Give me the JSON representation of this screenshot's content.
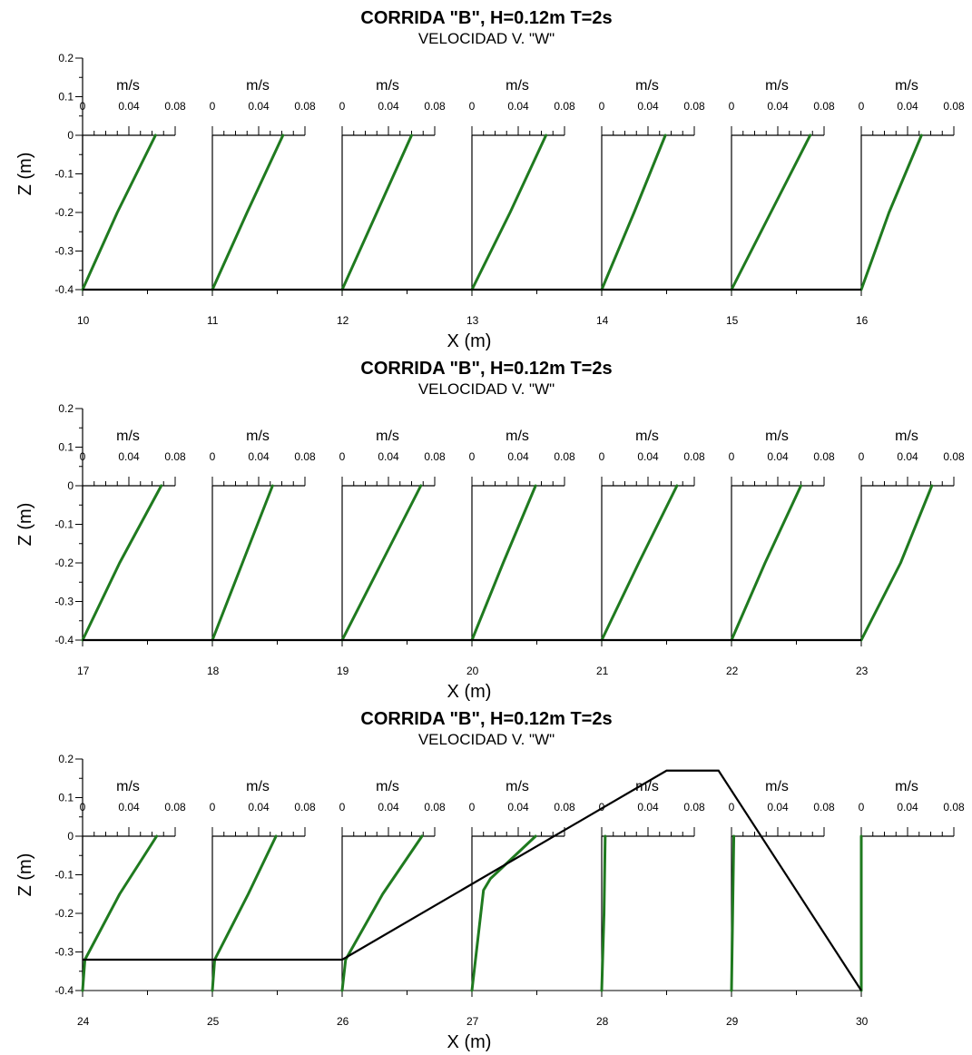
{
  "colors": {
    "profile": "#1f7a1f",
    "bed": "#000000",
    "axis": "#000000"
  },
  "chart_data": [
    {
      "type": "line",
      "title": "CORRIDA \"B\", H=0.12m T=2s",
      "subtitle": "VELOCIDAD V. \"W\"",
      "xlabel": "X (m)",
      "ylabel": "Z (m)",
      "xlim": [
        10,
        17.2
      ],
      "ylim": [
        -0.4,
        0.2
      ],
      "x_ticks": [
        "10",
        "11",
        "12",
        "13",
        "14",
        "15",
        "16"
      ],
      "y_ticks": [
        "0.2",
        "0.1",
        "0",
        "-0.1",
        "-0.2",
        "-0.3",
        "-0.4"
      ],
      "velocity_unit": "m/s",
      "velocity_ticks": [
        "0",
        "0.04",
        "0.08"
      ],
      "velocity_axis_range": [
        0,
        0.08
      ],
      "bed": [
        [
          10,
          -0.4
        ],
        [
          16,
          -0.4
        ]
      ],
      "profiles": [
        {
          "station": 10,
          "points": [
            [
              0,
              -0.4
            ],
            [
              0.03,
              -0.2
            ],
            [
              0.063,
              0
            ]
          ]
        },
        {
          "station": 11,
          "points": [
            [
              0,
              -0.4
            ],
            [
              0.03,
              -0.2
            ],
            [
              0.061,
              0
            ]
          ]
        },
        {
          "station": 12,
          "points": [
            [
              0,
              -0.4
            ],
            [
              0.03,
              -0.2
            ],
            [
              0.06,
              0
            ]
          ]
        },
        {
          "station": 13,
          "points": [
            [
              0,
              -0.4
            ],
            [
              0.033,
              -0.2
            ],
            [
              0.064,
              0
            ]
          ]
        },
        {
          "station": 14,
          "points": [
            [
              0,
              -0.4
            ],
            [
              0.028,
              -0.2
            ],
            [
              0.055,
              0
            ]
          ]
        },
        {
          "station": 15,
          "points": [
            [
              0,
              -0.4
            ],
            [
              0.034,
              -0.2
            ],
            [
              0.068,
              0
            ]
          ]
        },
        {
          "station": 16,
          "points": [
            [
              0,
              -0.4
            ],
            [
              0.024,
              -0.2
            ],
            [
              0.052,
              0
            ]
          ]
        }
      ]
    },
    {
      "type": "line",
      "title": "CORRIDA \"B\", H=0.12m T=2s",
      "subtitle": "VELOCIDAD V. \"W\"",
      "xlabel": "X (m)",
      "ylabel": "Z (m)",
      "xlim": [
        17,
        24.2
      ],
      "ylim": [
        -0.4,
        0.2
      ],
      "x_ticks": [
        "17",
        "18",
        "19",
        "20",
        "21",
        "22",
        "23"
      ],
      "y_ticks": [
        "0.2",
        "0.1",
        "0",
        "-0.1",
        "-0.2",
        "-0.3",
        "-0.4"
      ],
      "velocity_unit": "m/s",
      "velocity_ticks": [
        "0",
        "0.04",
        "0.08"
      ],
      "velocity_axis_range": [
        0,
        0.08
      ],
      "bed": [
        [
          17,
          -0.4
        ],
        [
          23,
          -0.4
        ]
      ],
      "profiles": [
        {
          "station": 17,
          "points": [
            [
              0,
              -0.4
            ],
            [
              0.032,
              -0.2
            ],
            [
              0.068,
              0
            ]
          ]
        },
        {
          "station": 18,
          "points": [
            [
              0,
              -0.4
            ],
            [
              0.026,
              -0.2
            ],
            [
              0.052,
              0
            ]
          ]
        },
        {
          "station": 19,
          "points": [
            [
              0,
              -0.4
            ],
            [
              0.034,
              -0.2
            ],
            [
              0.068,
              0
            ]
          ]
        },
        {
          "station": 20,
          "points": [
            [
              0,
              -0.4
            ],
            [
              0.027,
              -0.2
            ],
            [
              0.055,
              0
            ]
          ]
        },
        {
          "station": 21,
          "points": [
            [
              0,
              -0.4
            ],
            [
              0.032,
              -0.2
            ],
            [
              0.065,
              0
            ]
          ]
        },
        {
          "station": 22,
          "points": [
            [
              0,
              -0.4
            ],
            [
              0.029,
              -0.2
            ],
            [
              0.06,
              0
            ]
          ]
        },
        {
          "station": 23,
          "points": [
            [
              0,
              -0.4
            ],
            [
              0.034,
              -0.2
            ],
            [
              0.061,
              0
            ]
          ]
        }
      ]
    },
    {
      "type": "line",
      "title": "CORRIDA \"B\", H=0.12m T=2s",
      "subtitle": "VELOCIDAD V. \"W\"",
      "xlabel": "X (m)",
      "ylabel": "Z (m)",
      "xlim": [
        24,
        31.2
      ],
      "ylim": [
        -0.4,
        0.2
      ],
      "x_ticks": [
        "24",
        "25",
        "26",
        "27",
        "28",
        "29",
        "30"
      ],
      "y_ticks": [
        "0.2",
        "0.1",
        "0",
        "-0.1",
        "-0.2",
        "-0.3",
        "-0.4"
      ],
      "velocity_unit": "m/s",
      "velocity_ticks": [
        "0",
        "0.04",
        "0.08"
      ],
      "velocity_axis_range": [
        0,
        0.08
      ],
      "bed": [
        [
          24,
          -0.32
        ],
        [
          26,
          -0.32
        ],
        [
          28.5,
          0.17
        ],
        [
          28.9,
          0.17
        ],
        [
          30,
          -0.4
        ]
      ],
      "profiles": [
        {
          "station": 24,
          "points": [
            [
              0,
              -0.4
            ],
            [
              0.002,
              -0.32
            ],
            [
              0.032,
              -0.15
            ],
            [
              0.064,
              0
            ]
          ]
        },
        {
          "station": 25,
          "points": [
            [
              0,
              -0.4
            ],
            [
              0.002,
              -0.32
            ],
            [
              0.031,
              -0.15
            ],
            [
              0.055,
              0
            ]
          ]
        },
        {
          "station": 26,
          "points": [
            [
              0,
              -0.4
            ],
            [
              0.003,
              -0.32
            ],
            [
              0.035,
              -0.15
            ],
            [
              0.069,
              0
            ]
          ]
        },
        {
          "station": 27,
          "points": [
            [
              0,
              -0.4
            ],
            [
              0.01,
              -0.14
            ],
            [
              0.016,
              -0.11
            ],
            [
              0.055,
              0
            ]
          ]
        },
        {
          "station": 28,
          "points": [
            [
              0,
              -0.4
            ],
            [
              0.002,
              -0.2
            ],
            [
              0.003,
              0
            ]
          ]
        },
        {
          "station": 29,
          "points": [
            [
              0,
              -0.4
            ],
            [
              0.001,
              -0.2
            ],
            [
              0.002,
              0
            ]
          ]
        },
        {
          "station": 30,
          "points": [
            [
              0,
              -0.4
            ],
            [
              0,
              -0.2
            ],
            [
              0,
              0
            ]
          ]
        }
      ]
    }
  ]
}
